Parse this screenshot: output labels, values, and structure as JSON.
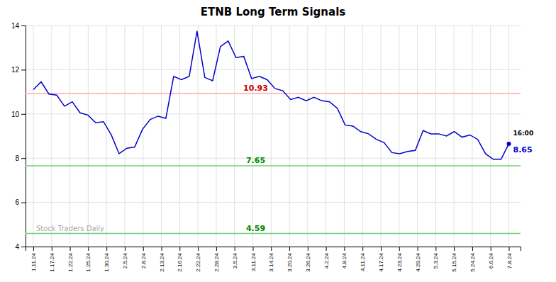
{
  "chart_data": {
    "type": "line",
    "title": "ETNB Long Term Signals",
    "values": [
      11.1,
      11.45,
      10.9,
      10.85,
      10.35,
      10.55,
      10.05,
      9.95,
      9.6,
      9.65,
      9.05,
      8.2,
      8.45,
      8.5,
      9.3,
      9.75,
      9.9,
      9.8,
      11.7,
      11.55,
      11.7,
      13.75,
      11.65,
      11.5,
      13.05,
      13.3,
      12.55,
      12.6,
      11.6,
      11.7,
      11.55,
      11.15,
      11.05,
      10.65,
      10.75,
      10.6,
      10.75,
      10.6,
      10.55,
      10.25,
      9.5,
      9.45,
      9.2,
      9.1,
      8.85,
      8.7,
      8.25,
      8.2,
      8.3,
      8.35,
      9.25,
      9.1,
      9.1,
      9.0,
      9.2,
      8.95,
      9.05,
      8.85,
      8.2,
      7.95,
      7.95,
      8.65
    ],
    "color": "#0000cc",
    "xlim": [
      -1,
      62.5
    ],
    "xticks": [
      {
        "value": 0,
        "label": "1.11.24"
      },
      {
        "value": 2.346153846153846,
        "label": "1.17.24"
      },
      {
        "value": 4.692307692307692,
        "label": "1.22.24"
      },
      {
        "value": 7.038461538461538,
        "label": "1.25.24"
      },
      {
        "value": 9.384615384615385,
        "label": "1.30.24"
      },
      {
        "value": 11.73076923076923,
        "label": "2.5.24"
      },
      {
        "value": 14.076923076923077,
        "label": "2.8.24"
      },
      {
        "value": 16.423076923076923,
        "label": "2.13.24"
      },
      {
        "value": 18.76923076923077,
        "label": "2.16.24"
      },
      {
        "value": 21.115384615384617,
        "label": "2.22.24"
      },
      {
        "value": 23.46153846153846,
        "label": "2.28.24"
      },
      {
        "value": 25.807692307692307,
        "label": "3.5.24"
      },
      {
        "value": 28.153846153846153,
        "label": "3.11.24"
      },
      {
        "value": 30.5,
        "label": "3.14.24"
      },
      {
        "value": 32.84615384615385,
        "label": "3.20.24"
      },
      {
        "value": 35.19230769230769,
        "label": "3.26.24"
      },
      {
        "value": 37.53846153846154,
        "label": "4.2.24"
      },
      {
        "value": 39.88461538461539,
        "label": "4.8.24"
      },
      {
        "value": 42.23076923076923,
        "label": "4.11.24"
      },
      {
        "value": 44.57692307692308,
        "label": "4.17.24"
      },
      {
        "value": 46.92307692307692,
        "label": "4.23.24"
      },
      {
        "value": 49.26923076923077,
        "label": "4.29.24"
      },
      {
        "value": 51.61538461538461,
        "label": "5.3.24"
      },
      {
        "value": 53.96153846153846,
        "label": "5.15.24"
      },
      {
        "value": 56.30769230769231,
        "label": "5.24.24"
      },
      {
        "value": 58.65384615384615,
        "label": "6.6.24"
      },
      {
        "value": 61,
        "label": "7.8.24"
      }
    ],
    "ylim": [
      4,
      14
    ],
    "yticks": [
      4,
      6,
      8,
      10,
      12,
      14
    ],
    "grid": true,
    "reference_lines": [
      {
        "value": 10.93,
        "label": "10.93",
        "color": "#ffaaaa",
        "label_color": "#cc0000"
      },
      {
        "value": 7.65,
        "label": "7.65",
        "color": "#77cc77",
        "label_color": "#008800"
      },
      {
        "value": 4.59,
        "label": "4.59",
        "color": "#77cc77",
        "label_color": "#008800"
      }
    ],
    "last_value_labels": {
      "time": "16:00",
      "value": "8.65"
    },
    "watermark": "Stock Traders Daily"
  }
}
